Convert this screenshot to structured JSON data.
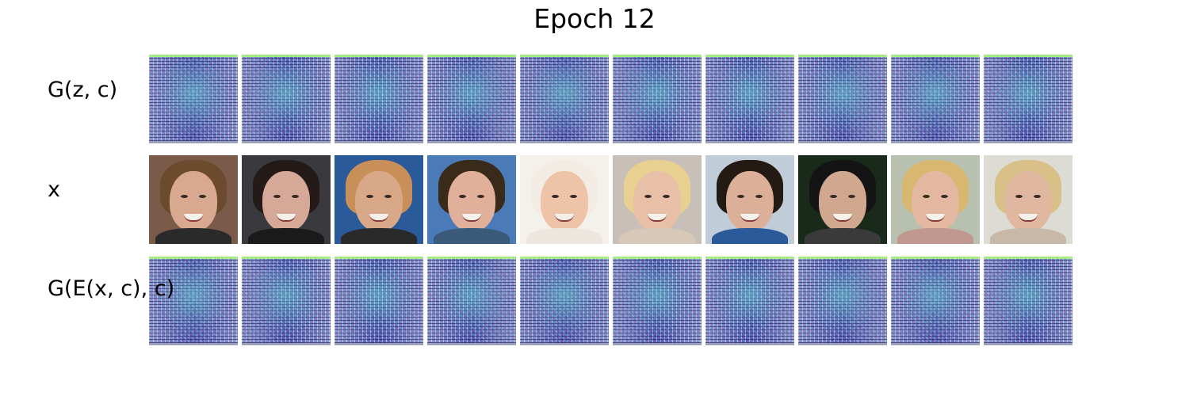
{
  "title": "Epoch 12",
  "rows": [
    {
      "label": "G(z, c)",
      "kind": "generated"
    },
    {
      "label": "x",
      "kind": "real"
    },
    {
      "label": "G(E(x, c), c)",
      "kind": "generated"
    }
  ],
  "columns": 10,
  "real_faces": [
    {
      "bg": "#7a5a48",
      "hair": "#6b4a2e",
      "skin": "#d8a890",
      "body": "#2a2a2a"
    },
    {
      "bg": "#3a3a3e",
      "hair": "#241a18",
      "skin": "#d6a898",
      "body": "#1a1a1a"
    },
    {
      "bg": "#2a5a9a",
      "hair": "#c89058",
      "skin": "#d8a888",
      "body": "#2a2a2a"
    },
    {
      "bg": "#4a7ab8",
      "hair": "#3a2a1a",
      "skin": "#e0b09a",
      "body": "#3a5a7a"
    },
    {
      "bg": "#f4f0ea",
      "hair": "#f2ece4",
      "skin": "#eec4a8",
      "body": "#ece6de"
    },
    {
      "bg": "#c8c0b8",
      "hair": "#e8d090",
      "skin": "#e8c0a8",
      "body": "#d8c8b8"
    },
    {
      "bg": "#c0ccd8",
      "hair": "#241a14",
      "skin": "#dcb098",
      "body": "#2a5a9a"
    },
    {
      "bg": "#1a2a1a",
      "hair": "#141414",
      "skin": "#d0a890",
      "body": "#3a3a3a"
    },
    {
      "bg": "#b8c0b0",
      "hair": "#d8b870",
      "skin": "#e4b8a0",
      "body": "#c09890"
    },
    {
      "bg": "#dcdcd4",
      "hair": "#d8c088",
      "skin": "#e0b8a0",
      "body": "#c8b8a8"
    }
  ]
}
